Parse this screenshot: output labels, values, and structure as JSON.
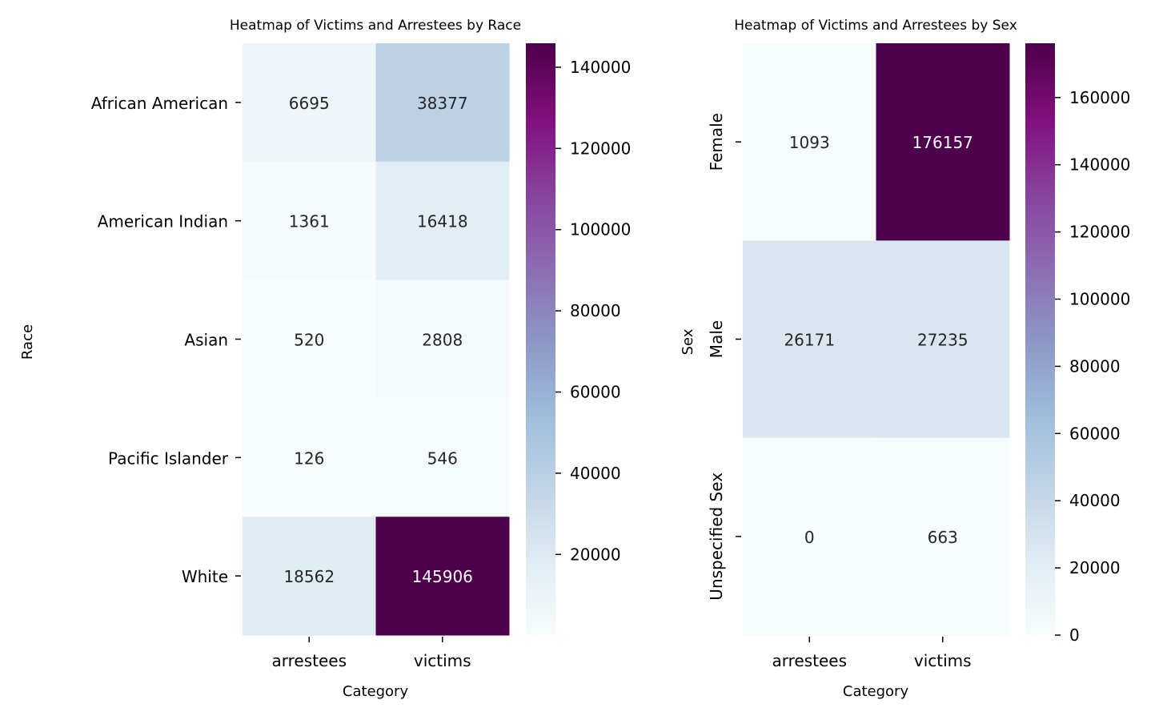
{
  "chart_data": [
    {
      "type": "heatmap",
      "title": "Heatmap of Victims and Arrestees by Race",
      "xlabel": "Category",
      "ylabel": "Race",
      "columns": [
        "arrestees",
        "victims"
      ],
      "rows": [
        "African American",
        "American Indian",
        "Asian",
        "Pacific Islander",
        "White"
      ],
      "values": [
        [
          6695,
          38377
        ],
        [
          1361,
          16418
        ],
        [
          520,
          2808
        ],
        [
          126,
          546
        ],
        [
          18562,
          145906
        ]
      ],
      "colorbar": {
        "min": 126,
        "max": 145906,
        "ticks": [
          20000,
          40000,
          60000,
          80000,
          100000,
          120000,
          140000
        ]
      },
      "colormap": [
        "#f7fcfd",
        "#e0ecf4",
        "#bfd3e6",
        "#9ebcda",
        "#8c96c6",
        "#8c6bb1",
        "#88419d",
        "#810f7c",
        "#4d004b"
      ]
    },
    {
      "type": "heatmap",
      "title": "Heatmap of Victims and Arrestees by Sex",
      "xlabel": "Category",
      "ylabel": "Sex",
      "columns": [
        "arrestees",
        "victims"
      ],
      "rows": [
        "Female",
        "Male",
        "Unspecified Sex"
      ],
      "values": [
        [
          1093,
          176157
        ],
        [
          26171,
          27235
        ],
        [
          0,
          663
        ]
      ],
      "colorbar": {
        "min": 0,
        "max": 176157,
        "ticks": [
          0,
          20000,
          40000,
          60000,
          80000,
          100000,
          120000,
          140000,
          160000
        ]
      },
      "colormap": [
        "#f7fcfd",
        "#e0ecf4",
        "#bfd3e6",
        "#9ebcda",
        "#8c96c6",
        "#8c6bb1",
        "#88419d",
        "#810f7c",
        "#4d004b"
      ]
    }
  ]
}
